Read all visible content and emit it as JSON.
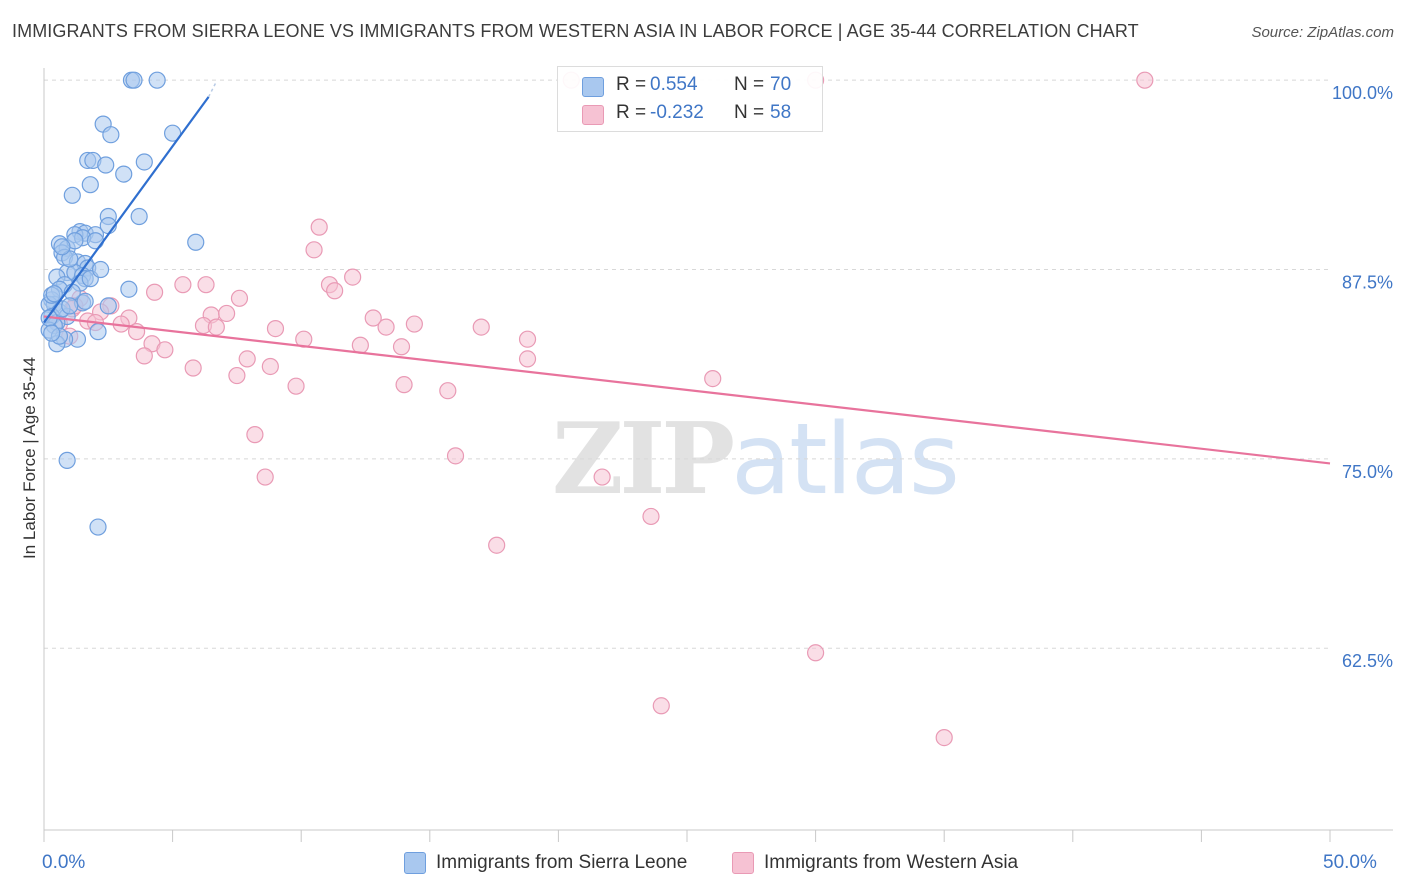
{
  "header": {
    "title": "IMMIGRANTS FROM SIERRA LEONE VS IMMIGRANTS FROM WESTERN ASIA IN LABOR FORCE | AGE 35-44 CORRELATION CHART",
    "source": "Source: ZipAtlas.com"
  },
  "watermark": {
    "zip": "ZIP",
    "atlas": "atlas"
  },
  "legend": {
    "r_label": "R =",
    "n_label": "N =",
    "series": [
      {
        "r": "0.554",
        "n": "70"
      },
      {
        "r": "-0.232",
        "n": "58"
      }
    ]
  },
  "colors": {
    "blue_fill": "#a9c8ef",
    "blue_stroke": "#6f9fde",
    "blue_line": "#2f6fcf",
    "pink_fill": "#f6c2d3",
    "pink_stroke": "#e99ab5",
    "pink_line": "#e8739c",
    "tick_label": "#3f76c6",
    "grid": "#d8d8d8"
  },
  "chart_data": {
    "type": "scatter",
    "title": "IMMIGRANTS FROM SIERRA LEONE VS IMMIGRANTS FROM WESTERN ASIA IN LABOR FORCE | AGE 35-44 CORRELATION CHART",
    "xlabel": "",
    "ylabel": "In Labor Force | Age 35-44",
    "xlim": [
      0,
      50
    ],
    "ylim": [
      50.5,
      101.2
    ],
    "x_tick_labels": [
      "0.0%",
      "50.0%"
    ],
    "y_ticks": [
      62.5,
      75.0,
      87.5,
      100.0
    ],
    "y_tick_labels": [
      "62.5%",
      "75.0%",
      "87.5%",
      "100.0%"
    ],
    "grid": true,
    "legend_position": "top-center",
    "series": [
      {
        "name": "Immigrants from Sierra Leone",
        "color": "#6f9fde",
        "r": 0.554,
        "n": 70,
        "trend": {
          "x": [
            0.0,
            6.4
          ],
          "y": [
            84.0,
            98.9
          ],
          "extends_dashed_to": [
            6.7,
            99.9
          ]
        },
        "points": [
          [
            3.4,
            100.0
          ],
          [
            3.5,
            100.0
          ],
          [
            4.4,
            100.0
          ],
          [
            2.3,
            97.1
          ],
          [
            2.6,
            96.4
          ],
          [
            5.0,
            96.5
          ],
          [
            1.7,
            94.7
          ],
          [
            1.9,
            94.7
          ],
          [
            2.4,
            94.4
          ],
          [
            3.9,
            94.6
          ],
          [
            3.1,
            93.8
          ],
          [
            1.8,
            93.1
          ],
          [
            1.1,
            92.4
          ],
          [
            2.5,
            91.0
          ],
          [
            3.7,
            91.0
          ],
          [
            2.5,
            90.4
          ],
          [
            1.4,
            90.0
          ],
          [
            1.6,
            89.9
          ],
          [
            1.2,
            89.8
          ],
          [
            2.0,
            89.8
          ],
          [
            1.5,
            89.6
          ],
          [
            0.6,
            89.2
          ],
          [
            0.9,
            88.9
          ],
          [
            0.7,
            88.6
          ],
          [
            1.2,
            89.4
          ],
          [
            2.0,
            89.4
          ],
          [
            5.9,
            89.3
          ],
          [
            0.8,
            88.3
          ],
          [
            1.3,
            88.0
          ],
          [
            1.6,
            87.9
          ],
          [
            1.7,
            87.6
          ],
          [
            0.9,
            87.3
          ],
          [
            1.2,
            87.3
          ],
          [
            1.5,
            87.1
          ],
          [
            1.6,
            86.9
          ],
          [
            0.5,
            87.0
          ],
          [
            0.8,
            86.5
          ],
          [
            1.4,
            86.6
          ],
          [
            0.6,
            86.2
          ],
          [
            3.3,
            86.2
          ],
          [
            0.3,
            85.5
          ],
          [
            0.4,
            85.2
          ],
          [
            0.2,
            85.2
          ],
          [
            1.5,
            85.3
          ],
          [
            1.6,
            85.4
          ],
          [
            2.5,
            85.1
          ],
          [
            0.6,
            84.7
          ],
          [
            0.9,
            84.4
          ],
          [
            0.3,
            84.4
          ],
          [
            0.5,
            84.0
          ],
          [
            0.4,
            83.8
          ],
          [
            0.2,
            83.5
          ],
          [
            2.1,
            83.4
          ],
          [
            1.3,
            82.9
          ],
          [
            0.8,
            82.9
          ],
          [
            0.5,
            82.6
          ],
          [
            0.3,
            85.8
          ],
          [
            0.7,
            84.9
          ],
          [
            1.1,
            86.0
          ],
          [
            0.4,
            85.9
          ],
          [
            0.2,
            84.3
          ],
          [
            1.0,
            85.1
          ],
          [
            0.9,
            74.9
          ],
          [
            2.1,
            70.5
          ],
          [
            0.6,
            83.1
          ],
          [
            0.3,
            83.3
          ],
          [
            1.8,
            86.9
          ],
          [
            2.2,
            87.5
          ],
          [
            1.0,
            88.2
          ],
          [
            0.7,
            89.0
          ]
        ]
      },
      {
        "name": "Immigrants from Western Asia",
        "color": "#e99ab5",
        "r": -0.232,
        "n": 58,
        "trend": {
          "x": [
            0.0,
            50.0
          ],
          "y": [
            84.4,
            74.7
          ]
        },
        "points": [
          [
            20.5,
            100.0
          ],
          [
            30.0,
            100.0
          ],
          [
            42.8,
            100.0
          ],
          [
            10.7,
            90.3
          ],
          [
            10.5,
            88.8
          ],
          [
            12.0,
            87.0
          ],
          [
            5.4,
            86.5
          ],
          [
            11.1,
            86.5
          ],
          [
            6.3,
            86.5
          ],
          [
            4.3,
            86.0
          ],
          [
            11.3,
            86.1
          ],
          [
            7.6,
            85.6
          ],
          [
            1.4,
            85.6
          ],
          [
            2.6,
            85.1
          ],
          [
            1.1,
            84.9
          ],
          [
            2.2,
            84.7
          ],
          [
            6.5,
            84.5
          ],
          [
            7.1,
            84.6
          ],
          [
            3.3,
            84.3
          ],
          [
            12.8,
            84.3
          ],
          [
            1.7,
            84.1
          ],
          [
            3.0,
            83.9
          ],
          [
            6.2,
            83.8
          ],
          [
            6.7,
            83.7
          ],
          [
            9.0,
            83.6
          ],
          [
            13.3,
            83.7
          ],
          [
            14.4,
            83.9
          ],
          [
            17.0,
            83.7
          ],
          [
            3.6,
            83.4
          ],
          [
            1.0,
            83.1
          ],
          [
            10.1,
            82.9
          ],
          [
            18.8,
            82.9
          ],
          [
            4.2,
            82.6
          ],
          [
            12.3,
            82.5
          ],
          [
            13.9,
            82.4
          ],
          [
            4.7,
            82.2
          ],
          [
            3.9,
            81.8
          ],
          [
            7.9,
            81.6
          ],
          [
            18.8,
            81.6
          ],
          [
            5.8,
            81.0
          ],
          [
            8.8,
            81.1
          ],
          [
            7.5,
            80.5
          ],
          [
            26.0,
            80.3
          ],
          [
            14.0,
            79.9
          ],
          [
            9.8,
            79.8
          ],
          [
            15.7,
            79.5
          ],
          [
            8.2,
            76.6
          ],
          [
            16.0,
            75.2
          ],
          [
            8.6,
            73.8
          ],
          [
            21.7,
            73.8
          ],
          [
            23.6,
            71.2
          ],
          [
            17.6,
            69.3
          ],
          [
            30.0,
            62.2
          ],
          [
            24.0,
            58.7
          ],
          [
            35.0,
            56.6
          ],
          [
            0.6,
            83.9
          ],
          [
            2.0,
            84.0
          ],
          [
            1.2,
            85.1
          ]
        ]
      }
    ]
  }
}
